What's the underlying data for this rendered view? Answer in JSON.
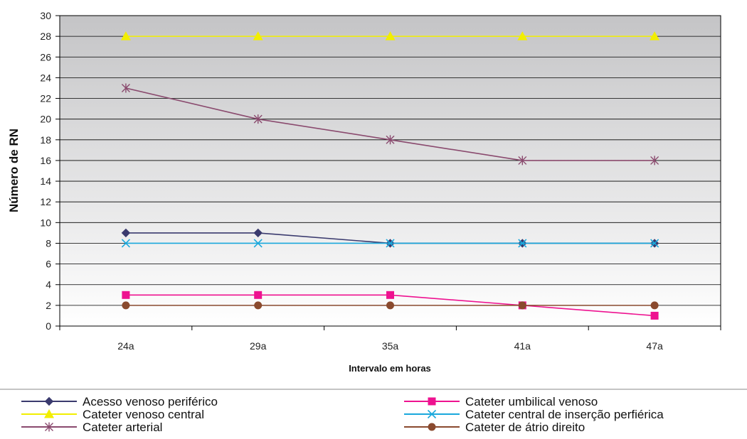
{
  "chart_data": {
    "type": "line",
    "categories": [
      "24a",
      "29a",
      "35a",
      "41a",
      "47a"
    ],
    "xlabel": "Intervalo em horas",
    "ylabel": "Número de RN",
    "ylim": [
      0,
      30
    ],
    "yticks": [
      0,
      2,
      4,
      6,
      8,
      10,
      12,
      14,
      16,
      18,
      20,
      22,
      24,
      26,
      28,
      30
    ],
    "grid": true,
    "legend_position": "bottom",
    "series": [
      {
        "name": "Acesso venoso periférico",
        "values": [
          9,
          9,
          8,
          8,
          8
        ],
        "color": "#3a3a6e",
        "marker": "diamond"
      },
      {
        "name": "Cateter umbilical venoso",
        "values": [
          3,
          3,
          3,
          2,
          1
        ],
        "color": "#ee1290",
        "marker": "square"
      },
      {
        "name": "Cateter venoso central",
        "values": [
          28,
          28,
          28,
          28,
          28
        ],
        "color": "#f2ee00",
        "marker": "triangle"
      },
      {
        "name": "Cateter central de inserção perfiérica",
        "values": [
          8,
          8,
          8,
          8,
          8
        ],
        "color": "#1aa8dc",
        "marker": "x"
      },
      {
        "name": "Cateter arterial",
        "values": [
          23,
          20,
          18,
          16,
          16
        ],
        "color": "#8a4a6e",
        "marker": "star"
      },
      {
        "name": "Cateter de átrio direito",
        "values": [
          2,
          2,
          2,
          2,
          2
        ],
        "color": "#8a4a2e",
        "marker": "circle"
      }
    ]
  }
}
